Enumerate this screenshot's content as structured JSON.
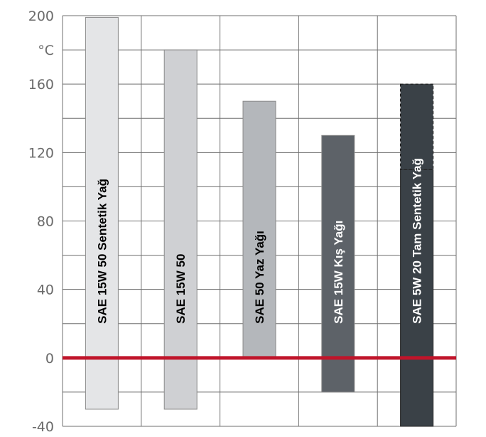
{
  "chart_data": {
    "type": "bar",
    "orientation": "vertical-range",
    "unit": "°C",
    "ylim": [
      -40,
      200
    ],
    "y_ticks": [
      -40,
      0,
      40,
      80,
      120,
      160,
      200
    ],
    "grid": true,
    "reference_line": {
      "value": 0,
      "color": "#c0142a"
    },
    "series": [
      {
        "name": "SAE 15W 50 Sentetik Yağ",
        "low": -30,
        "high": 199,
        "color": "#e4e5e7",
        "text_color": "#000000"
      },
      {
        "name": "SAE 15W 50",
        "low": -30,
        "high": 180,
        "color": "#cfd0d3",
        "text_color": "#000000"
      },
      {
        "name": "SAE  50 Yaz Yağı",
        "low": 0,
        "high": 150,
        "color": "#b4b7bb",
        "text_color": "#000000"
      },
      {
        "name": "SAE  15W  Kış Yağı",
        "low": -20,
        "high": 130,
        "color": "#5d6268",
        "text_color": "#ffffff"
      },
      {
        "name": "SAE  5W 20 Tam Sentetik  Yağ",
        "low": -40,
        "high": 160,
        "color": "#3a4147",
        "text_color": "#ffffff",
        "dashed_top_from": 110
      }
    ]
  }
}
